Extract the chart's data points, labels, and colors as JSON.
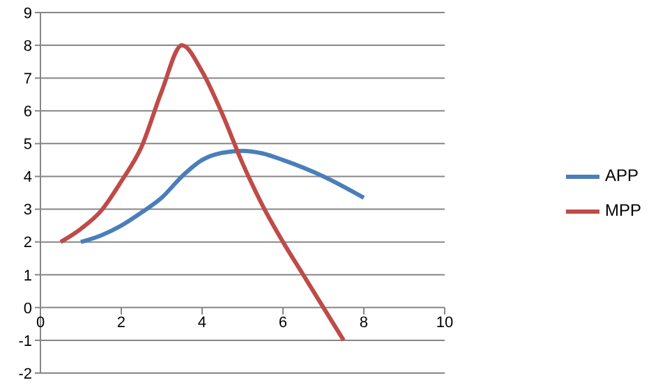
{
  "chart_data": {
    "type": "line",
    "xlim": [
      0,
      10
    ],
    "xticks": [
      0,
      2,
      4,
      6,
      8,
      10
    ],
    "ylim": [
      -2,
      9
    ],
    "yticks": [
      -2,
      -1,
      0,
      1,
      2,
      3,
      4,
      5,
      6,
      7,
      8,
      9
    ],
    "grid": "y",
    "legend": "right",
    "marker": "none",
    "series": [
      {
        "name": "APP",
        "color": "#4a7ebb",
        "x": [
          1,
          1.5,
          2,
          2.5,
          3,
          3.5,
          4,
          4.5,
          5,
          5.5,
          6,
          7,
          8
        ],
        "values": [
          2,
          2.2,
          2.5,
          2.9,
          3.35,
          4,
          4.5,
          4.72,
          4.78,
          4.7,
          4.5,
          4,
          3.35
        ]
      },
      {
        "name": "MPP",
        "color": "#be4b48",
        "x": [
          0.5,
          1,
          1.5,
          2,
          2.5,
          3,
          3.5,
          4,
          4.5,
          5,
          5.5,
          6,
          6.5,
          7,
          7.5
        ],
        "values": [
          2,
          2.4,
          2.95,
          3.85,
          4.9,
          6.6,
          8,
          7.2,
          5.9,
          4.4,
          3.1,
          2,
          1,
          0,
          -1
        ]
      }
    ]
  }
}
